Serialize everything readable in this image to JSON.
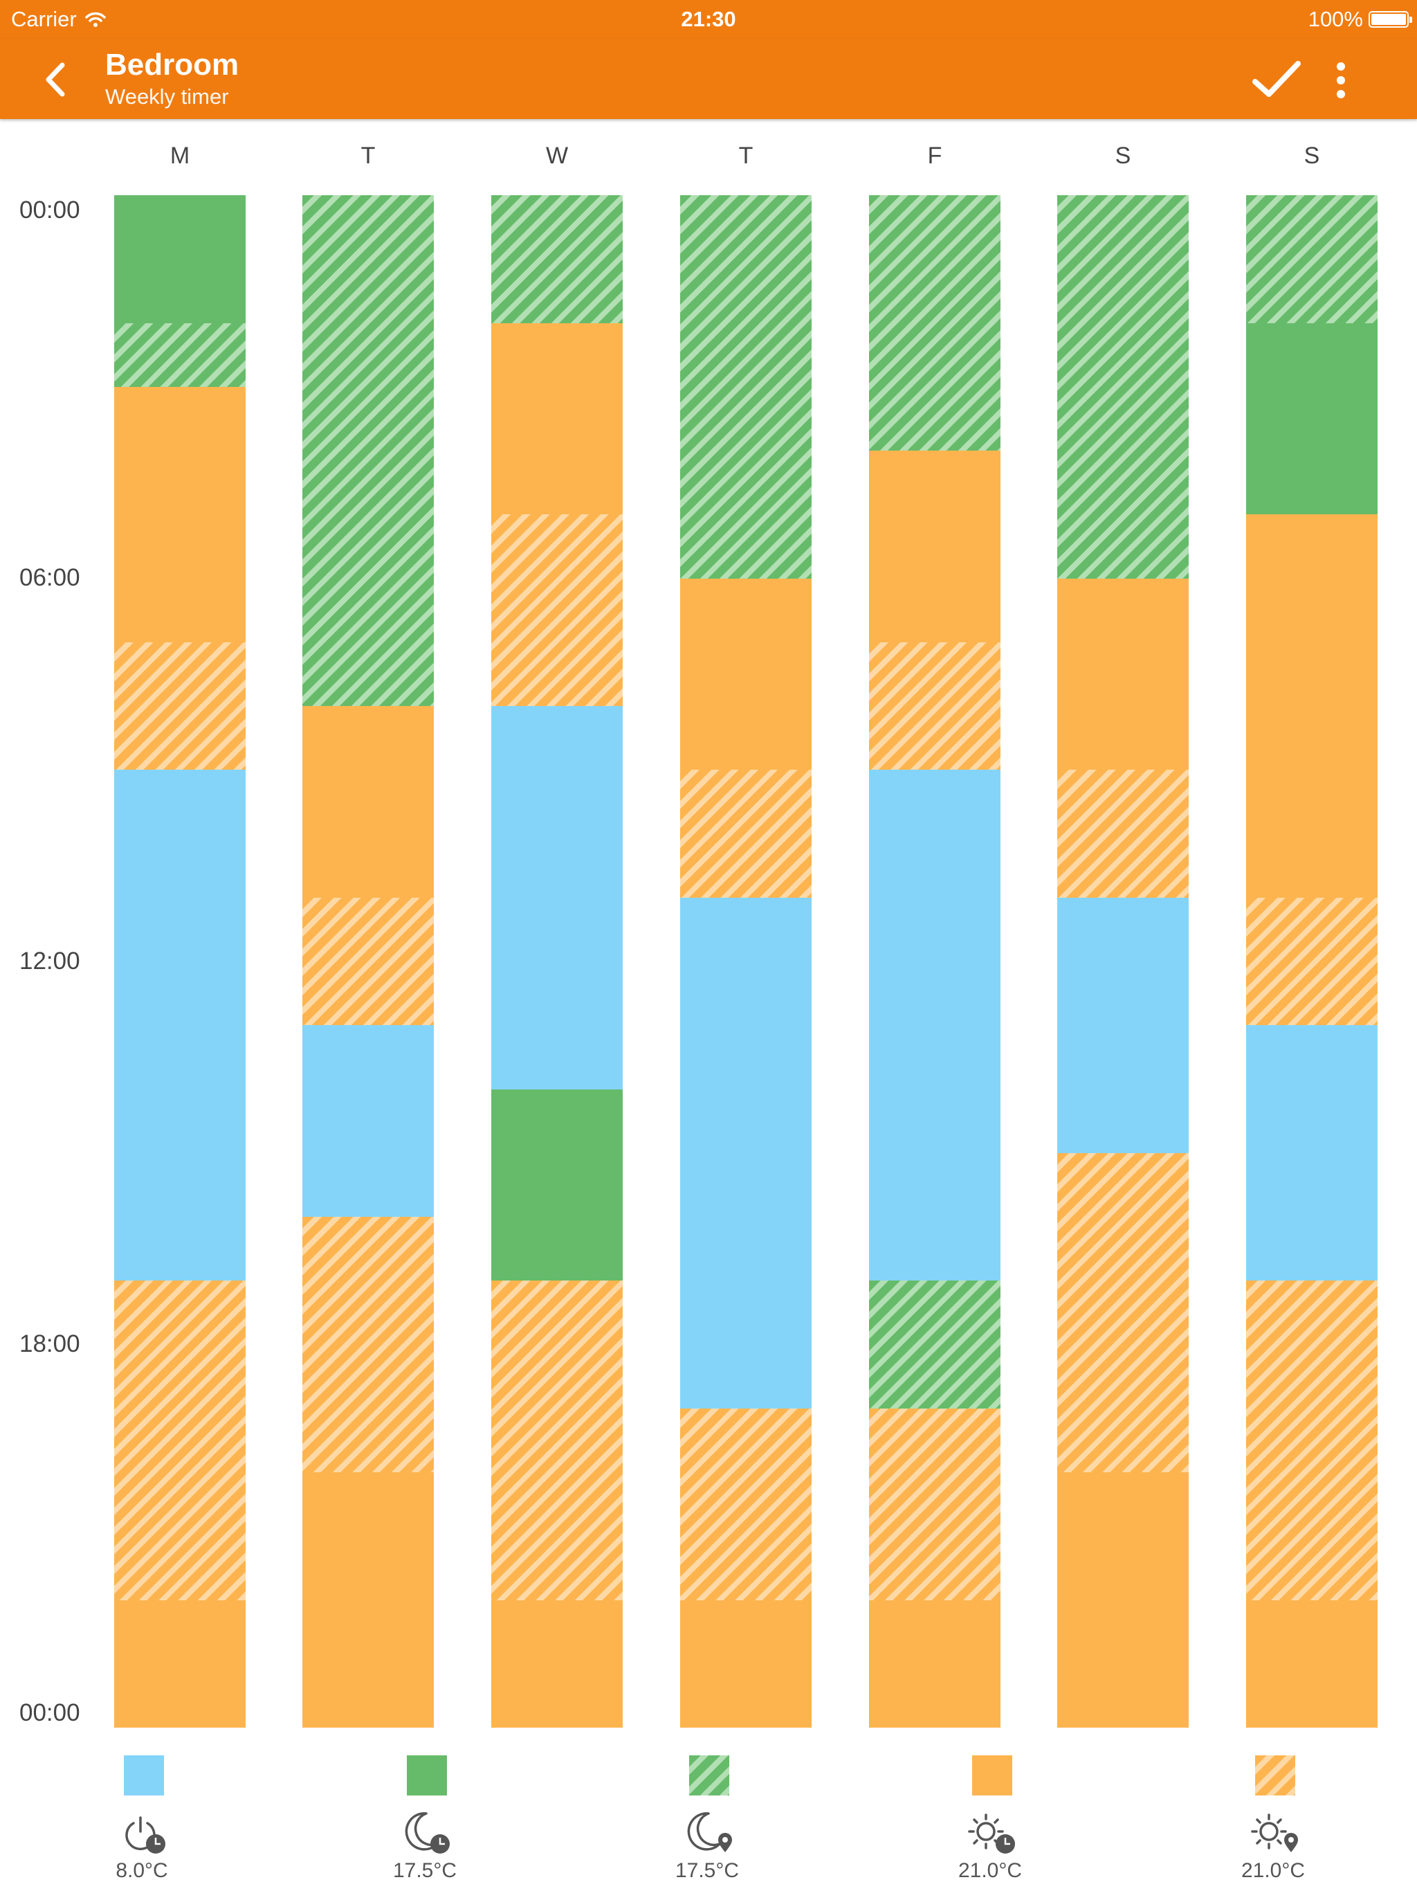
{
  "status_bar": {
    "carrier": "Carrier",
    "time": "21:30",
    "battery": "100%",
    "battery_level": 1.0
  },
  "header": {
    "title": "Bedroom",
    "subtitle": "Weekly timer"
  },
  "colors": {
    "app_bar": "#f07c10",
    "comfort_solid": "#fdb44e",
    "comfort_stripe": "#fed9a6",
    "off": "#84d4f9",
    "eco_solid": "#66bb6a",
    "eco_stripe": "#b2dfb3"
  },
  "time_labels": [
    "00:00",
    "06:00",
    "12:00",
    "18:00",
    "00:00"
  ],
  "days": [
    {
      "label": "M",
      "blocks": [
        {
          "from": 0,
          "to": 2,
          "mode": "eco-timer"
        },
        {
          "from": 2,
          "to": 3,
          "mode": "eco-presence"
        },
        {
          "from": 3,
          "to": 7,
          "mode": "comfort-timer"
        },
        {
          "from": 7,
          "to": 9,
          "mode": "comfort-presence"
        },
        {
          "from": 9,
          "to": 17,
          "mode": "off-timer"
        },
        {
          "from": 17,
          "to": 22,
          "mode": "comfort-presence"
        },
        {
          "from": 22,
          "to": 24,
          "mode": "comfort-timer"
        }
      ]
    },
    {
      "label": "T",
      "blocks": [
        {
          "from": 0,
          "to": 8,
          "mode": "eco-presence"
        },
        {
          "from": 8,
          "to": 11,
          "mode": "comfort-timer"
        },
        {
          "from": 11,
          "to": 13,
          "mode": "comfort-presence"
        },
        {
          "from": 13,
          "to": 16,
          "mode": "off-timer"
        },
        {
          "from": 16,
          "to": 20,
          "mode": "comfort-presence"
        },
        {
          "from": 20,
          "to": 24,
          "mode": "comfort-timer"
        }
      ]
    },
    {
      "label": "W",
      "blocks": [
        {
          "from": 0,
          "to": 2,
          "mode": "eco-presence"
        },
        {
          "from": 2,
          "to": 5,
          "mode": "comfort-timer"
        },
        {
          "from": 5,
          "to": 8,
          "mode": "comfort-presence"
        },
        {
          "from": 8,
          "to": 14,
          "mode": "off-timer"
        },
        {
          "from": 14,
          "to": 17,
          "mode": "eco-timer"
        },
        {
          "from": 17,
          "to": 22,
          "mode": "comfort-presence"
        },
        {
          "from": 22,
          "to": 24,
          "mode": "comfort-timer"
        }
      ]
    },
    {
      "label": "T",
      "blocks": [
        {
          "from": 0,
          "to": 6,
          "mode": "eco-presence"
        },
        {
          "from": 6,
          "to": 9,
          "mode": "comfort-timer"
        },
        {
          "from": 9,
          "to": 11,
          "mode": "comfort-presence"
        },
        {
          "from": 11,
          "to": 19,
          "mode": "off-timer"
        },
        {
          "from": 19,
          "to": 22,
          "mode": "comfort-presence"
        },
        {
          "from": 22,
          "to": 24,
          "mode": "comfort-timer"
        }
      ]
    },
    {
      "label": "F",
      "blocks": [
        {
          "from": 0,
          "to": 4,
          "mode": "eco-presence"
        },
        {
          "from": 4,
          "to": 7,
          "mode": "comfort-timer"
        },
        {
          "from": 7,
          "to": 9,
          "mode": "comfort-presence"
        },
        {
          "from": 9,
          "to": 17,
          "mode": "off-timer"
        },
        {
          "from": 17,
          "to": 19,
          "mode": "eco-presence"
        },
        {
          "from": 19,
          "to": 22,
          "mode": "comfort-presence"
        },
        {
          "from": 22,
          "to": 24,
          "mode": "comfort-timer"
        }
      ]
    },
    {
      "label": "S",
      "blocks": [
        {
          "from": 0,
          "to": 6,
          "mode": "eco-presence"
        },
        {
          "from": 6,
          "to": 9,
          "mode": "comfort-timer"
        },
        {
          "from": 9,
          "to": 11,
          "mode": "comfort-presence"
        },
        {
          "from": 11,
          "to": 15,
          "mode": "off-timer"
        },
        {
          "from": 15,
          "to": 20,
          "mode": "comfort-presence"
        },
        {
          "from": 20,
          "to": 24,
          "mode": "comfort-timer"
        }
      ]
    },
    {
      "label": "S",
      "blocks": [
        {
          "from": 0,
          "to": 2,
          "mode": "eco-presence"
        },
        {
          "from": 2,
          "to": 5,
          "mode": "eco-timer"
        },
        {
          "from": 5,
          "to": 11,
          "mode": "comfort-timer"
        },
        {
          "from": 11,
          "to": 13,
          "mode": "comfort-presence"
        },
        {
          "from": 13,
          "to": 17,
          "mode": "off-timer"
        },
        {
          "from": 17,
          "to": 22,
          "mode": "comfort-presence"
        },
        {
          "from": 22,
          "to": 24,
          "mode": "comfort-timer"
        }
      ]
    }
  ],
  "legend": [
    {
      "mode": "off-timer",
      "icon": "power-clock-icon",
      "temp": "8.0°C"
    },
    {
      "mode": "eco-timer",
      "icon": "moon-clock-icon",
      "temp": "17.5°C"
    },
    {
      "mode": "eco-presence",
      "icon": "moon-location-icon",
      "temp": "17.5°C"
    },
    {
      "mode": "comfort-timer",
      "icon": "sun-clock-icon",
      "temp": "21.0°C"
    },
    {
      "mode": "comfort-presence",
      "icon": "sun-location-icon",
      "temp": "21.0°C"
    }
  ]
}
